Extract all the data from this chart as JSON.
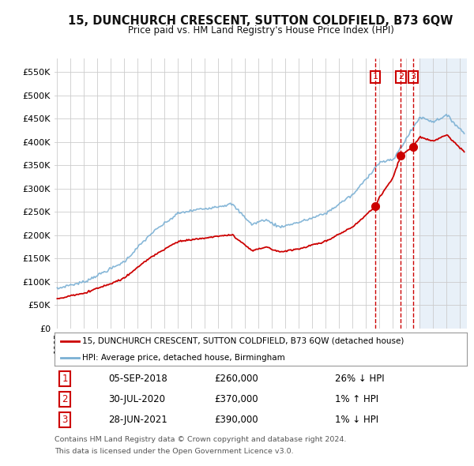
{
  "title": "15, DUNCHURCH CRESCENT, SUTTON COLDFIELD, B73 6QW",
  "subtitle": "Price paid vs. HM Land Registry's House Price Index (HPI)",
  "legend_property_label": "15, DUNCHURCH CRESCENT, SUTTON COLDFIELD, B73 6QW (detached house)",
  "legend_hpi_label": "HPI: Average price, detached house, Birmingham",
  "property_color": "#cc0000",
  "hpi_color": "#7ab0d4",
  "transactions": [
    {
      "num": 1,
      "date": "05-SEP-2018",
      "price": 260000,
      "pct": "26%",
      "dir": "↓",
      "x": 2018.67
    },
    {
      "num": 2,
      "date": "30-JUL-2020",
      "price": 370000,
      "pct": "1%",
      "dir": "↑",
      "x": 2020.58
    },
    {
      "num": 3,
      "date": "28-JUN-2021",
      "price": 390000,
      "pct": "1%",
      "dir": "↓",
      "x": 2021.49
    }
  ],
  "footnote1": "Contains HM Land Registry data © Crown copyright and database right 2024.",
  "footnote2": "This data is licensed under the Open Government Licence v3.0.",
  "background_color": "#ffffff",
  "grid_color": "#cccccc",
  "shaded_blue_color": "#e8f0f8",
  "yticks": [
    0,
    50000,
    100000,
    150000,
    200000,
    250000,
    300000,
    350000,
    400000,
    450000,
    500000,
    550000
  ],
  "ytick_labels": [
    "£0",
    "£50K",
    "£100K",
    "£150K",
    "£200K",
    "£250K",
    "£300K",
    "£350K",
    "£400K",
    "£450K",
    "£500K",
    "£550K"
  ],
  "xlim_start": 1994.8,
  "xlim_end": 2025.5,
  "ylim": [
    0,
    580000
  ],
  "table_rows": [
    [
      "1",
      "05-SEP-2018",
      "£260,000",
      "26% ↓ HPI"
    ],
    [
      "2",
      "30-JUL-2020",
      "£370,000",
      "1% ↑ HPI"
    ],
    [
      "3",
      "28-JUN-2021",
      "£390,000",
      "1% ↓ HPI"
    ]
  ]
}
